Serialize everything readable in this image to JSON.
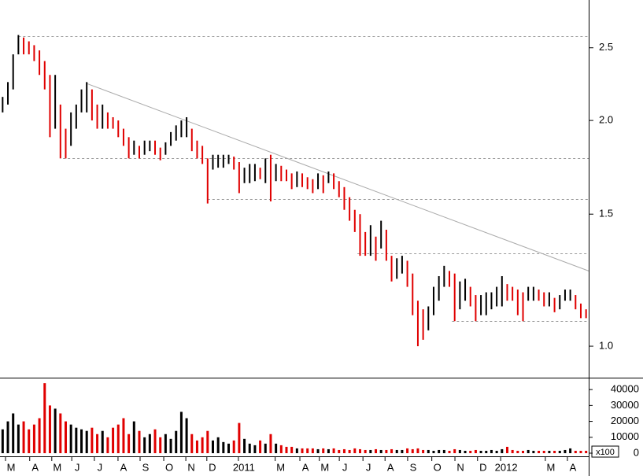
{
  "chart_data": {
    "type": "stock",
    "high": [
      2.15,
      2.25,
      2.45,
      2.6,
      2.58,
      2.55,
      2.52,
      2.48,
      2.4,
      2.3,
      2.3,
      2.1,
      1.95,
      2.05,
      2.1,
      2.2,
      2.25,
      2.2,
      2.1,
      2.1,
      2.05,
      2.02,
      2.0,
      1.95,
      1.9,
      1.88,
      1.85,
      1.88,
      1.88,
      1.88,
      1.84,
      1.87,
      1.93,
      1.97,
      2.0,
      2.02,
      1.95,
      1.88,
      1.85,
      1.78,
      1.8,
      1.8,
      1.8,
      1.8,
      1.79,
      1.76,
      1.73,
      1.75,
      1.75,
      1.73,
      1.78,
      1.8,
      1.75,
      1.74,
      1.72,
      1.7,
      1.71,
      1.7,
      1.68,
      1.67,
      1.7,
      1.69,
      1.71,
      1.7,
      1.66,
      1.63,
      1.58,
      1.52,
      1.5,
      1.42,
      1.45,
      1.4,
      1.47,
      1.43,
      1.32,
      1.31,
      1.32,
      1.3,
      1.25,
      1.15,
      1.12,
      1.13,
      1.2,
      1.24,
      1.28,
      1.26,
      1.25,
      1.22,
      1.23,
      1.2,
      1.17,
      1.17,
      1.18,
      1.18,
      1.2,
      1.24,
      1.21,
      1.2,
      1.19,
      1.18,
      1.2,
      1.2,
      1.19,
      1.18,
      1.18,
      1.16,
      1.17,
      1.19,
      1.19,
      1.17,
      1.14,
      1.12
    ],
    "low": [
      2.05,
      2.1,
      2.2,
      2.45,
      2.45,
      2.45,
      2.4,
      2.3,
      2.2,
      1.9,
      1.95,
      1.78,
      1.78,
      1.85,
      1.95,
      2.05,
      2.05,
      2.0,
      1.95,
      1.95,
      1.95,
      1.95,
      1.9,
      1.85,
      1.78,
      1.8,
      1.78,
      1.8,
      1.82,
      1.8,
      1.77,
      1.8,
      1.85,
      1.88,
      1.9,
      1.9,
      1.82,
      1.78,
      1.75,
      1.55,
      1.72,
      1.73,
      1.73,
      1.75,
      1.72,
      1.6,
      1.65,
      1.65,
      1.66,
      1.67,
      1.65,
      1.56,
      1.66,
      1.66,
      1.66,
      1.62,
      1.63,
      1.63,
      1.62,
      1.6,
      1.62,
      1.6,
      1.65,
      1.62,
      1.58,
      1.52,
      1.47,
      1.42,
      1.32,
      1.32,
      1.32,
      1.3,
      1.35,
      1.3,
      1.22,
      1.23,
      1.25,
      1.2,
      1.1,
      1.0,
      1.02,
      1.05,
      1.1,
      1.15,
      1.2,
      1.2,
      1.08,
      1.12,
      1.15,
      1.13,
      1.08,
      1.1,
      1.1,
      1.12,
      1.13,
      1.13,
      1.15,
      1.15,
      1.1,
      1.08,
      1.15,
      1.15,
      1.15,
      1.13,
      1.13,
      1.11,
      1.12,
      1.15,
      1.15,
      1.12,
      1.09,
      1.09
    ],
    "volume": [
      15000,
      20000,
      25000,
      18000,
      20000,
      15000,
      18000,
      22000,
      44000,
      30000,
      28000,
      25000,
      20000,
      18000,
      16000,
      15000,
      14000,
      16000,
      12000,
      14000,
      10000,
      16000,
      18000,
      22000,
      12000,
      20000,
      14000,
      10000,
      12000,
      15000,
      10000,
      12000,
      9000,
      14000,
      26000,
      22000,
      12000,
      8000,
      10000,
      14000,
      8000,
      10000,
      7000,
      6000,
      8000,
      19000,
      9000,
      6000,
      5000,
      8000,
      6000,
      12000,
      6000,
      5000,
      4000,
      4000,
      3000,
      3000,
      3000,
      3000,
      2500,
      3000,
      2500,
      3000,
      2000,
      2500,
      2000,
      3000,
      2500,
      2000,
      2000,
      2500,
      2000,
      2000,
      2500,
      2000,
      2000,
      3000,
      2500,
      3000,
      2000,
      2000,
      1500,
      2000,
      2000,
      1500,
      2500,
      2000,
      1500,
      1500,
      2000,
      1500,
      1500,
      2000,
      1500,
      2500,
      4000,
      2000,
      1500,
      1500,
      2000,
      1500,
      1500,
      1500,
      1500,
      1500,
      1500,
      2000,
      3000,
      1500,
      1500,
      1500
    ],
    "up_color": "#000000",
    "down_color": "#e00000",
    "log_scale": true,
    "xlim": [
      0,
      112
    ],
    "xticks": [
      {
        "value": 2.1,
        "label": "M"
      },
      {
        "value": 6.7,
        "label": "A"
      },
      {
        "value": 10.9,
        "label": "M"
      },
      {
        "value": 14.7,
        "label": "J"
      },
      {
        "value": 19,
        "label": "J"
      },
      {
        "value": 23.5,
        "label": "A"
      },
      {
        "value": 27.7,
        "label": "S"
      },
      {
        "value": 32.2,
        "label": "O"
      },
      {
        "value": 36.4,
        "label": "N"
      },
      {
        "value": 40.4,
        "label": "D"
      },
      {
        "value": 46.4,
        "label": "2011"
      },
      {
        "value": 53.4,
        "label": "M"
      },
      {
        "value": 58.1,
        "label": "A"
      },
      {
        "value": 61.8,
        "label": "M"
      },
      {
        "value": 65.6,
        "label": "J"
      },
      {
        "value": 70.1,
        "label": "J"
      },
      {
        "value": 74.3,
        "label": "A"
      },
      {
        "value": 78.6,
        "label": "S"
      },
      {
        "value": 83.2,
        "label": "O"
      },
      {
        "value": 87.6,
        "label": "N"
      },
      {
        "value": 91.9,
        "label": "D"
      },
      {
        "value": 96.3,
        "label": "2012"
      },
      {
        "value": 104.8,
        "label": "M"
      },
      {
        "value": 109,
        "label": "A"
      }
    ],
    "ylim": [
      0.908,
      2.895
    ],
    "yticks": [
      {
        "value": 1,
        "label": "1.0"
      },
      1.5,
      {
        "value": 2,
        "label": "2.0"
      },
      2.5
    ],
    "volume_ylim": [
      0,
      47000
    ],
    "volume_yticks": [
      0,
      10000,
      20000,
      30000,
      40000
    ],
    "volume_unit": "x100",
    "reference_lines": [
      {
        "value": 2.59,
        "x_start": 3.5
      },
      {
        "value": 1.78,
        "x_start": 12
      },
      {
        "value": 1.57,
        "x_start": 39.5
      },
      {
        "value": 1.33,
        "x_start": 68
      },
      {
        "value": 1.08,
        "x_start": 86
      }
    ],
    "trendline": {
      "x": [
        16.5,
        112
      ],
      "y": [
        2.24,
        1.26
      ]
    }
  }
}
